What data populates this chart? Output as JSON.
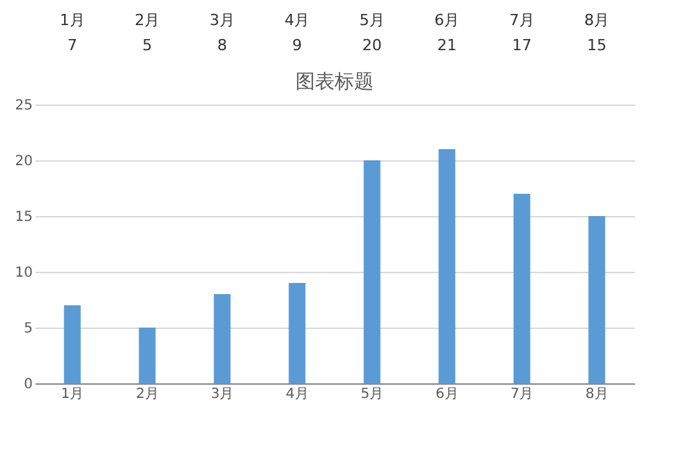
{
  "chart_data": {
    "type": "bar",
    "title": "图表标题",
    "categories": [
      "1月",
      "2月",
      "3月",
      "4月",
      "5月",
      "6月",
      "7月",
      "8月"
    ],
    "values": [
      7,
      5,
      8,
      9,
      20,
      21,
      17,
      15
    ],
    "color": "#5b9bd5",
    "ylim": [
      0,
      25
    ],
    "yticks": [
      0,
      5,
      10,
      15,
      20,
      25
    ],
    "grid": "y",
    "data_labels": true
  }
}
